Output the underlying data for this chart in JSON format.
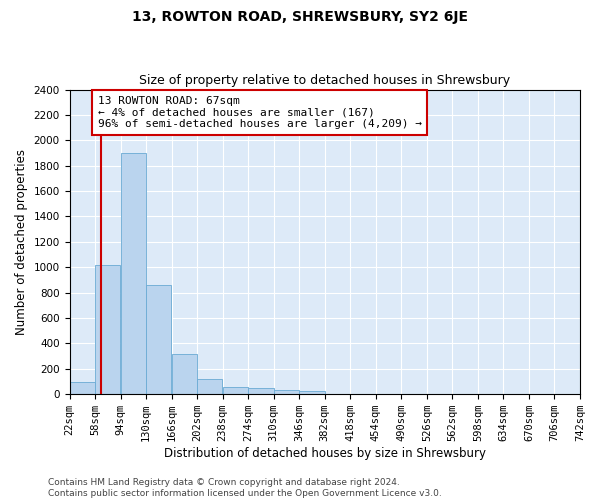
{
  "title": "13, ROWTON ROAD, SHREWSBURY, SY2 6JE",
  "subtitle": "Size of property relative to detached houses in Shrewsbury",
  "xlabel": "Distribution of detached houses by size in Shrewsbury",
  "ylabel": "Number of detached properties",
  "bar_color": "#bad4ee",
  "bar_edge_color": "#6aaad4",
  "background_color": "#ddeaf8",
  "grid_color": "#ffffff",
  "annotation_line1": "13 ROWTON ROAD: 67sqm",
  "annotation_line2": "← 4% of detached houses are smaller (167)",
  "annotation_line3": "96% of semi-detached houses are larger (4,209) →",
  "annotation_box_color": "#ffffff",
  "annotation_box_edge_color": "#cc0000",
  "property_line_color": "#cc0000",
  "property_size": 67,
  "bin_edges": [
    22,
    58,
    94,
    130,
    166,
    202,
    238,
    274,
    310,
    346,
    382,
    418,
    454,
    490,
    526,
    562,
    598,
    634,
    670,
    706,
    742
  ],
  "bar_heights": [
    100,
    1020,
    1900,
    860,
    320,
    120,
    60,
    50,
    35,
    25,
    0,
    0,
    0,
    0,
    0,
    0,
    0,
    0,
    0,
    0
  ],
  "ylim": [
    0,
    2400
  ],
  "yticks": [
    0,
    200,
    400,
    600,
    800,
    1000,
    1200,
    1400,
    1600,
    1800,
    2000,
    2200,
    2400
  ],
  "footer_text": "Contains HM Land Registry data © Crown copyright and database right 2024.\nContains public sector information licensed under the Open Government Licence v3.0.",
  "title_fontsize": 10,
  "subtitle_fontsize": 9,
  "xlabel_fontsize": 8.5,
  "ylabel_fontsize": 8.5,
  "tick_fontsize": 7.5,
  "annotation_fontsize": 8,
  "footer_fontsize": 6.5
}
